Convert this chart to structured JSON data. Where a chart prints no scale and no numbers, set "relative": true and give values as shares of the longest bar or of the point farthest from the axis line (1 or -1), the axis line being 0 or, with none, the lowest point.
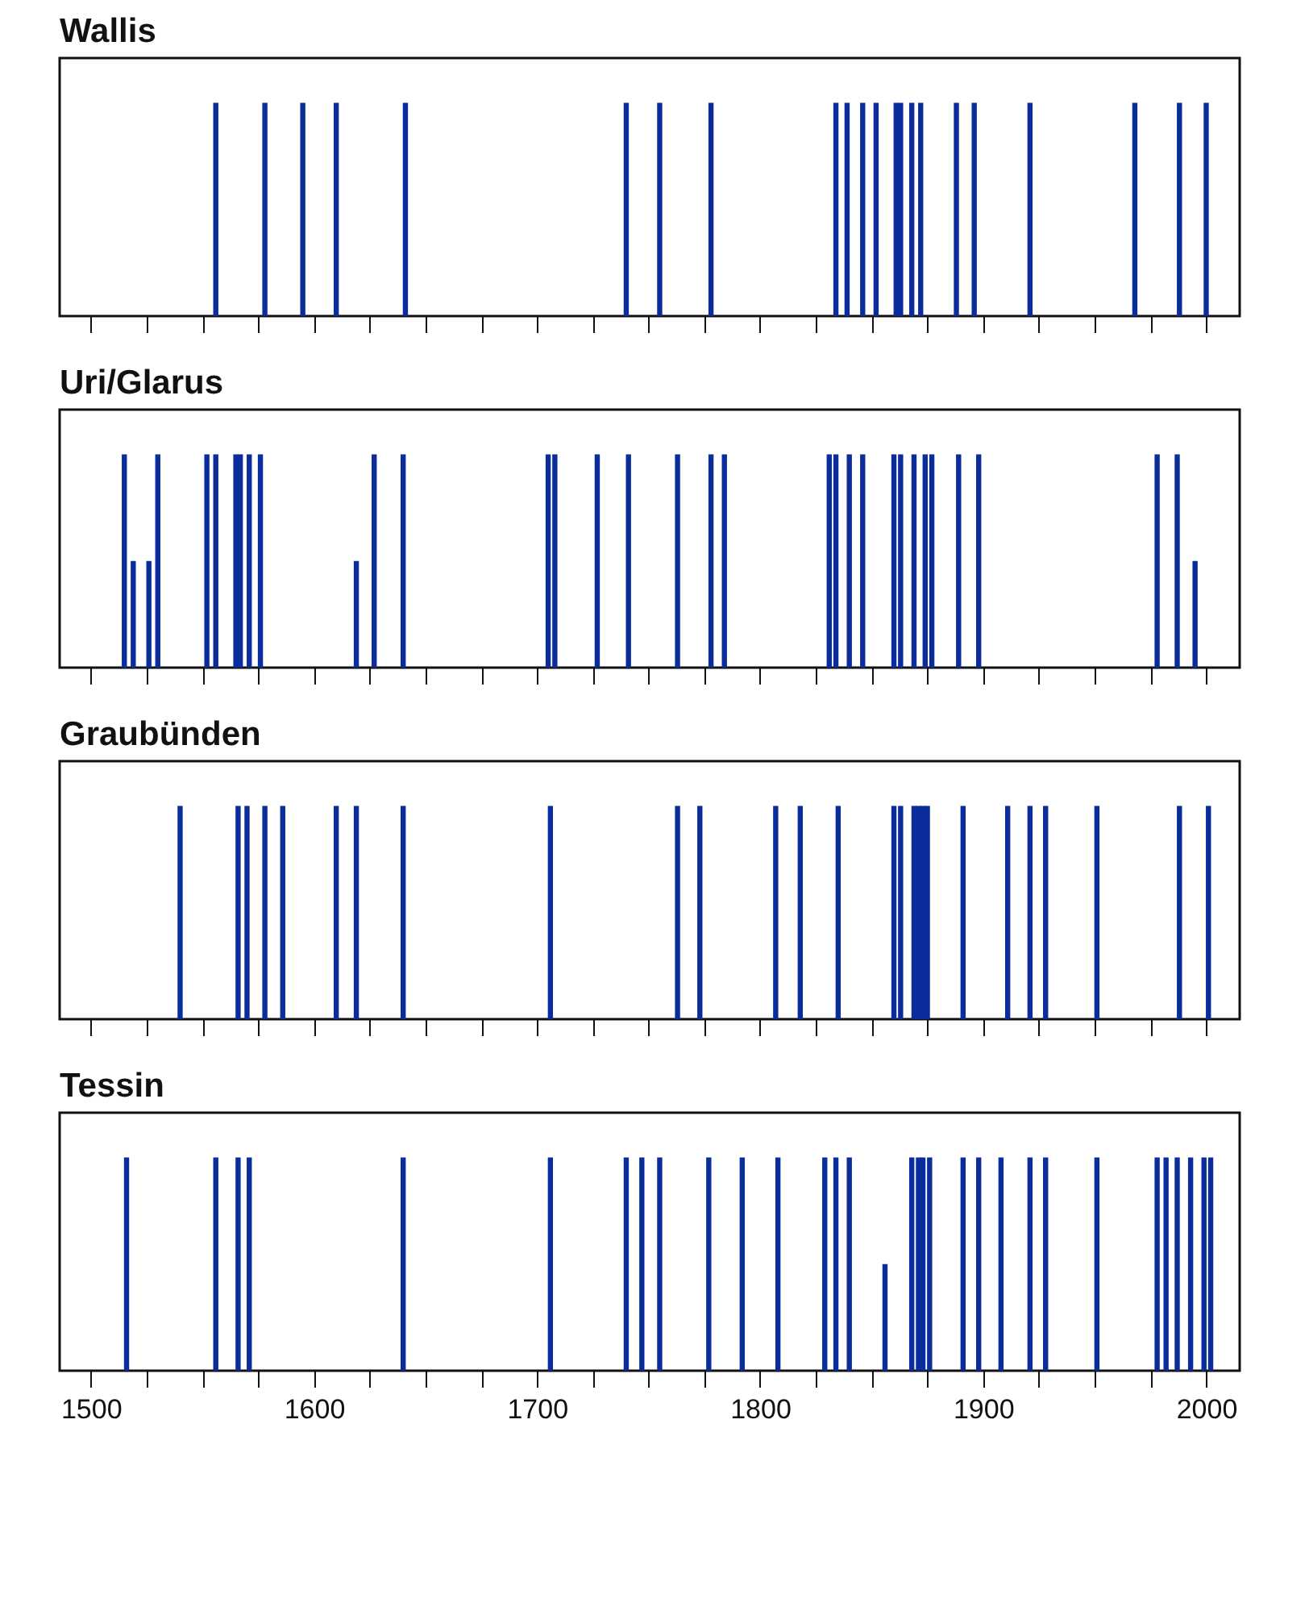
{
  "chart_data": [
    {
      "type": "bar",
      "title": "Wallis",
      "relative": true,
      "color": "#0b2d9c",
      "tick_labels": false,
      "xlim": [
        1486,
        2015
      ],
      "xticks": [
        {
          "value": 1500,
          "label": null
        },
        {
          "value": 1525,
          "label": null
        },
        {
          "value": 1550,
          "label": null
        },
        {
          "value": 1575,
          "label": null
        },
        {
          "value": 1600,
          "label": null
        },
        {
          "value": 1625,
          "label": null
        },
        {
          "value": 1650,
          "label": null
        },
        {
          "value": 1675,
          "label": null
        },
        {
          "value": 1700,
          "label": null
        },
        {
          "value": 1725,
          "label": null
        },
        {
          "value": 1750,
          "label": null
        },
        {
          "value": 1775,
          "label": null
        },
        {
          "value": 1800,
          "label": null
        },
        {
          "value": 1825,
          "label": null
        },
        {
          "value": 1850,
          "label": null
        },
        {
          "value": 1875,
          "label": null
        },
        {
          "value": 1900,
          "label": null
        },
        {
          "value": 1925,
          "label": null
        },
        {
          "value": 1950,
          "label": null
        },
        {
          "value": 1975,
          "label": null
        },
        {
          "value": 2000,
          "label": null
        }
      ],
      "x": [
        1556,
        1578,
        1595,
        1610,
        1641,
        1740,
        1755,
        1778,
        1834,
        1839,
        1846,
        1852,
        1861,
        1863,
        1868,
        1872,
        1888,
        1896,
        1921,
        1968,
        1988,
        2000
      ],
      "values": [
        1,
        1,
        1,
        1,
        1,
        1,
        1,
        1,
        1,
        1,
        1,
        1,
        1,
        1,
        1,
        1,
        1,
        1,
        1,
        1,
        1,
        1
      ]
    },
    {
      "type": "bar",
      "title": "Uri/Glarus",
      "relative": true,
      "color": "#0b2d9c",
      "tick_labels": false,
      "xlim": [
        1486,
        2015
      ],
      "xticks": [
        {
          "value": 1500,
          "label": null
        },
        {
          "value": 1525,
          "label": null
        },
        {
          "value": 1550,
          "label": null
        },
        {
          "value": 1575,
          "label": null
        },
        {
          "value": 1600,
          "label": null
        },
        {
          "value": 1625,
          "label": null
        },
        {
          "value": 1650,
          "label": null
        },
        {
          "value": 1675,
          "label": null
        },
        {
          "value": 1700,
          "label": null
        },
        {
          "value": 1725,
          "label": null
        },
        {
          "value": 1750,
          "label": null
        },
        {
          "value": 1775,
          "label": null
        },
        {
          "value": 1800,
          "label": null
        },
        {
          "value": 1825,
          "label": null
        },
        {
          "value": 1850,
          "label": null
        },
        {
          "value": 1875,
          "label": null
        },
        {
          "value": 1900,
          "label": null
        },
        {
          "value": 1925,
          "label": null
        },
        {
          "value": 1950,
          "label": null
        },
        {
          "value": 1975,
          "label": null
        },
        {
          "value": 2000,
          "label": null
        }
      ],
      "x": [
        1515,
        1519,
        1526,
        1530,
        1552,
        1556,
        1565,
        1567,
        1571,
        1576,
        1619,
        1627,
        1640,
        1705,
        1708,
        1727,
        1741,
        1763,
        1778,
        1784,
        1831,
        1834,
        1840,
        1846,
        1860,
        1863,
        1869,
        1874,
        1877,
        1889,
        1898,
        1978,
        1987,
        1995
      ],
      "values": [
        1,
        0.5,
        0.5,
        1,
        1,
        1,
        1,
        1,
        1,
        1,
        0.5,
        1,
        1,
        1,
        1,
        1,
        1,
        1,
        1,
        1,
        1,
        1,
        1,
        1,
        1,
        1,
        1,
        1,
        1,
        1,
        1,
        1,
        1,
        0.5
      ]
    },
    {
      "type": "bar",
      "title": "Graubünden",
      "relative": true,
      "color": "#0b2d9c",
      "tick_labels": false,
      "xlim": [
        1486,
        2015
      ],
      "xticks": [
        {
          "value": 1500,
          "label": null
        },
        {
          "value": 1525,
          "label": null
        },
        {
          "value": 1550,
          "label": null
        },
        {
          "value": 1575,
          "label": null
        },
        {
          "value": 1600,
          "label": null
        },
        {
          "value": 1625,
          "label": null
        },
        {
          "value": 1650,
          "label": null
        },
        {
          "value": 1675,
          "label": null
        },
        {
          "value": 1700,
          "label": null
        },
        {
          "value": 1725,
          "label": null
        },
        {
          "value": 1750,
          "label": null
        },
        {
          "value": 1775,
          "label": null
        },
        {
          "value": 1800,
          "label": null
        },
        {
          "value": 1825,
          "label": null
        },
        {
          "value": 1850,
          "label": null
        },
        {
          "value": 1875,
          "label": null
        },
        {
          "value": 1900,
          "label": null
        },
        {
          "value": 1925,
          "label": null
        },
        {
          "value": 1950,
          "label": null
        },
        {
          "value": 1975,
          "label": null
        },
        {
          "value": 2000,
          "label": null
        }
      ],
      "x": [
        1540,
        1566,
        1570,
        1578,
        1586,
        1610,
        1619,
        1640,
        1706,
        1763,
        1773,
        1807,
        1818,
        1835,
        1860,
        1863,
        1869,
        1871,
        1873,
        1875,
        1891,
        1911,
        1921,
        1928,
        1951,
        1988,
        2001
      ],
      "values": [
        1,
        1,
        1,
        1,
        1,
        1,
        1,
        1,
        1,
        1,
        1,
        1,
        1,
        1,
        1,
        1,
        1,
        1,
        1,
        1,
        1,
        1,
        1,
        1,
        1,
        1,
        1
      ]
    },
    {
      "type": "bar",
      "title": "Tessin",
      "relative": true,
      "color": "#0b2d9c",
      "xlim": [
        1486,
        2015
      ],
      "xticks": [
        1500,
        {
          "value": 1525,
          "label": null
        },
        {
          "value": 1550,
          "label": null
        },
        {
          "value": 1575,
          "label": null
        },
        1600,
        {
          "value": 1625,
          "label": null
        },
        {
          "value": 1650,
          "label": null
        },
        {
          "value": 1675,
          "label": null
        },
        1700,
        {
          "value": 1725,
          "label": null
        },
        {
          "value": 1750,
          "label": null
        },
        {
          "value": 1775,
          "label": null
        },
        1800,
        {
          "value": 1825,
          "label": null
        },
        {
          "value": 1850,
          "label": null
        },
        {
          "value": 1875,
          "label": null
        },
        1900,
        {
          "value": 1925,
          "label": null
        },
        {
          "value": 1950,
          "label": null
        },
        {
          "value": 1975,
          "label": null
        },
        2000
      ],
      "x": [
        1516,
        1556,
        1566,
        1571,
        1640,
        1706,
        1740,
        1747,
        1755,
        1777,
        1792,
        1808,
        1829,
        1834,
        1840,
        1856,
        1868,
        1871,
        1873,
        1876,
        1891,
        1898,
        1908,
        1921,
        1928,
        1951,
        1978,
        1982,
        1987,
        1993,
        1999,
        2002
      ],
      "values": [
        1,
        1,
        1,
        1,
        1,
        1,
        1,
        1,
        1,
        1,
        1,
        1,
        1,
        1,
        1,
        0.5,
        1,
        1,
        1,
        1,
        1,
        1,
        1,
        1,
        1,
        1,
        1,
        1,
        1,
        1,
        1,
        1
      ]
    }
  ]
}
